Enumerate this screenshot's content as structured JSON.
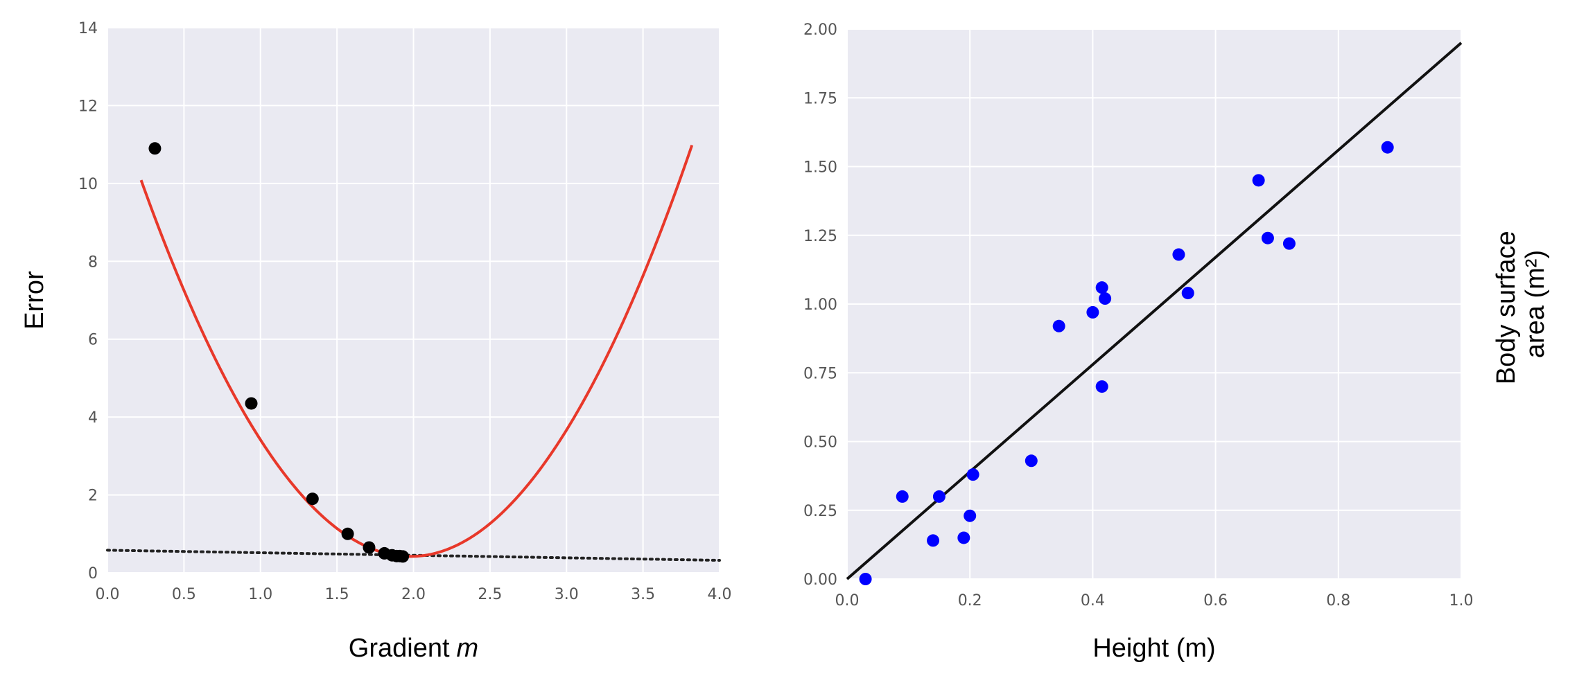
{
  "chart_data": [
    {
      "type": "scatter",
      "xlabel": "Gradient",
      "xlabel_var": "m",
      "ylabel": "Error",
      "xlim": [
        0,
        4
      ],
      "ylim": [
        0,
        14
      ],
      "grid": true,
      "x_ticks": [
        "0.0",
        "0.5",
        "1.0",
        "1.5",
        "2.0",
        "2.5",
        "3.0",
        "3.5",
        "4.0"
      ],
      "y_ticks": [
        "0",
        "2",
        "4",
        "6",
        "8",
        "10",
        "12",
        "14"
      ],
      "curve": {
        "kind": "parabola",
        "vertex_x": 1.98,
        "vertex_y": 0.42,
        "a": 3.12,
        "x_range": [
          0.22,
          3.82
        ],
        "color": "#e8382a"
      },
      "points": {
        "x": [
          0.31,
          0.94,
          1.34,
          1.57,
          1.71,
          1.81,
          1.86,
          1.89,
          1.91,
          1.93
        ],
        "y": [
          10.9,
          4.35,
          1.9,
          1.0,
          0.65,
          0.5,
          0.45,
          0.43,
          0.43,
          0.42
        ],
        "color": "#000000"
      },
      "dotted_line": {
        "x": [
          0,
          4
        ],
        "y": [
          0.58,
          0.32
        ],
        "color": "#222222"
      }
    },
    {
      "type": "scatter",
      "xlabel": "Height (m)",
      "ylabel": "Body surface area (m²)",
      "ylabel_lines": [
        "Body surface",
        "area (m²)"
      ],
      "xlim": [
        0,
        1.0
      ],
      "ylim": [
        0,
        2.0
      ],
      "grid": true,
      "x_ticks": [
        "0.0",
        "0.2",
        "0.4",
        "0.6",
        "0.8",
        "1.0"
      ],
      "y_ticks": [
        "0.00",
        "0.25",
        "0.50",
        "0.75",
        "1.00",
        "1.25",
        "1.50",
        "1.75",
        "2.00"
      ],
      "points": {
        "x": [
          0.03,
          0.09,
          0.14,
          0.15,
          0.19,
          0.2,
          0.205,
          0.3,
          0.345,
          0.4,
          0.415,
          0.415,
          0.42,
          0.54,
          0.555,
          0.67,
          0.685,
          0.72,
          0.88
        ],
        "y": [
          0.0,
          0.3,
          0.14,
          0.3,
          0.15,
          0.23,
          0.38,
          0.43,
          0.92,
          0.97,
          1.06,
          0.7,
          1.02,
          1.18,
          1.04,
          1.45,
          1.24,
          1.22,
          1.57
        ],
        "color": "#0000ff"
      },
      "fit_line": {
        "x": [
          0,
          1.0
        ],
        "y": [
          0.0,
          1.95
        ],
        "color": "#111111"
      }
    }
  ]
}
